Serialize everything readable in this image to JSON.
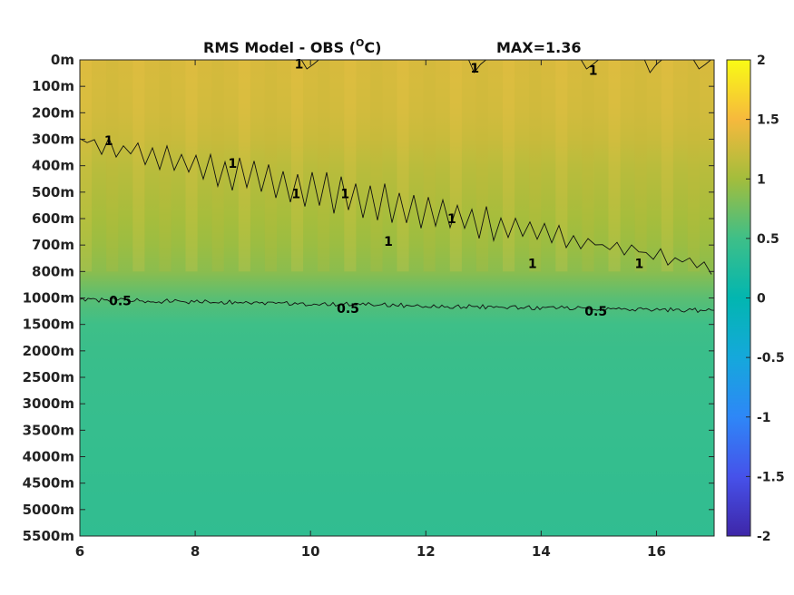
{
  "chart_data": {
    "type": "heatmap",
    "title_left": "RMS Model - OBS (",
    "title_sup": "O",
    "title_unit": "C)",
    "title_right": "MAX=1.36",
    "x_range": [
      6,
      17
    ],
    "x_ticks": [
      6,
      8,
      10,
      12,
      14,
      16
    ],
    "x_tick_labels": [
      "6",
      "8",
      "10",
      "12",
      "14",
      "16"
    ],
    "y_tick_labels": [
      "0m",
      "100m",
      "200m",
      "300m",
      "400m",
      "500m",
      "600m",
      "700m",
      "800m",
      "1000m",
      "1500m",
      "2000m",
      "2500m",
      "3000m",
      "3500m",
      "4000m",
      "4500m",
      "5000m",
      "5500m"
    ],
    "colorbar": {
      "range": [
        -2,
        2
      ],
      "ticks": [
        2,
        1.5,
        1,
        0.5,
        0,
        -0.5,
        -1,
        -1.5,
        -2
      ],
      "tick_labels": [
        "2",
        "1.5",
        "1",
        "0.5",
        "0",
        "-0.5",
        "-1",
        "-1.5",
        "-2"
      ],
      "colormap": "parula"
    },
    "field_by_level": [
      1.32,
      1.3,
      1.28,
      1.22,
      1.14,
      1.08,
      1.02,
      0.96,
      0.88,
      0.64,
      0.5,
      0.47,
      0.45,
      0.44,
      0.43,
      0.42,
      0.41,
      0.4,
      0.39
    ],
    "contours": [
      {
        "level": "1",
        "labels": [
          {
            "x": 9.8,
            "depth_index": 0.15
          },
          {
            "x": 12.85,
            "depth_index": 0.3
          },
          {
            "x": 14.9,
            "depth_index": 0.4
          },
          {
            "x": 6.5,
            "depth_index": 3.05
          },
          {
            "x": 8.65,
            "depth_index": 3.9
          },
          {
            "x": 9.75,
            "depth_index": 5.05
          },
          {
            "x": 10.6,
            "depth_index": 5.05
          },
          {
            "x": 11.35,
            "depth_index": 6.85
          },
          {
            "x": 12.45,
            "depth_index": 6.0
          },
          {
            "x": 13.85,
            "depth_index": 7.7
          },
          {
            "x": 15.7,
            "depth_index": 7.7
          }
        ]
      },
      {
        "level": "0.5",
        "labels": [
          {
            "x": 6.7,
            "depth_index": 9.1
          },
          {
            "x": 10.65,
            "depth_index": 9.4
          },
          {
            "x": 14.95,
            "depth_index": 9.5
          }
        ]
      }
    ]
  }
}
